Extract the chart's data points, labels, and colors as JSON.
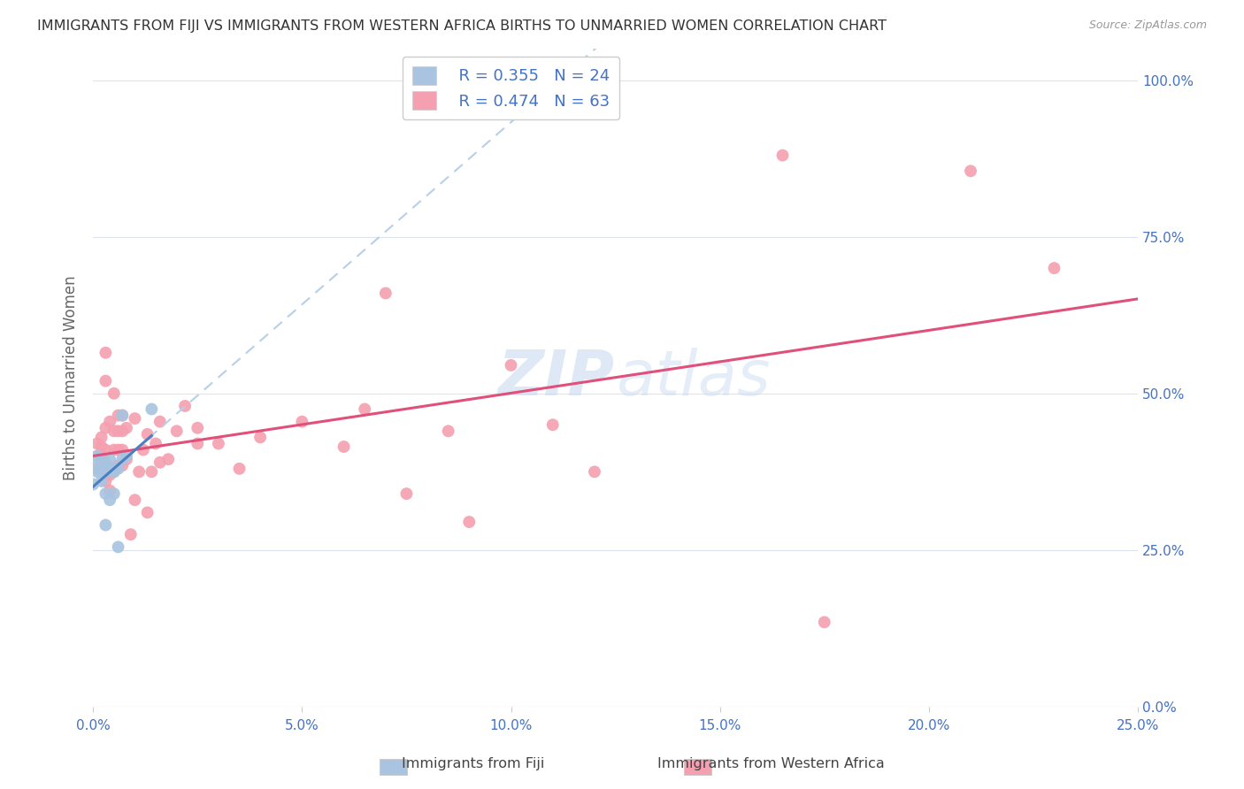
{
  "title": "IMMIGRANTS FROM FIJI VS IMMIGRANTS FROM WESTERN AFRICA BIRTHS TO UNMARRIED WOMEN CORRELATION CHART",
  "source": "Source: ZipAtlas.com",
  "ylabel": "Births to Unmarried Women",
  "xlabel_fiji": "Immigrants from Fiji",
  "xlabel_africa": "Immigrants from Western Africa",
  "fiji_R": 0.355,
  "fiji_N": 24,
  "africa_R": 0.474,
  "africa_N": 63,
  "fiji_color": "#a8c4e0",
  "africa_color": "#f4a0b0",
  "fiji_line_color": "#4a7fc0",
  "africa_line_color": "#e0507a",
  "fiji_trend_color": "#b8cfe8",
  "background_color": "#ffffff",
  "watermark_zip": "ZIP",
  "watermark_atlas": "atlas",
  "xmin": 0.0,
  "xmax": 0.25,
  "ymin": 0.0,
  "ymax": 1.05,
  "x_ticks": [
    0.0,
    0.05,
    0.1,
    0.15,
    0.2,
    0.25
  ],
  "x_tick_labels": [
    "0.0%",
    "5.0%",
    "10.0%",
    "15.0%",
    "20.0%",
    "25.0%"
  ],
  "y_ticks": [
    0.0,
    0.25,
    0.5,
    0.75,
    1.0
  ],
  "y_tick_labels": [
    "0.0%",
    "25.0%",
    "50.0%",
    "75.0%",
    "100.0%"
  ],
  "fiji_x": [
    0.0,
    0.001,
    0.001,
    0.001,
    0.002,
    0.002,
    0.002,
    0.002,
    0.003,
    0.003,
    0.003,
    0.003,
    0.003,
    0.004,
    0.004,
    0.005,
    0.005,
    0.005,
    0.006,
    0.006,
    0.007,
    0.007,
    0.008,
    0.014
  ],
  "fiji_y": [
    0.355,
    0.375,
    0.385,
    0.4,
    0.36,
    0.375,
    0.385,
    0.395,
    0.29,
    0.34,
    0.375,
    0.38,
    0.39,
    0.33,
    0.395,
    0.34,
    0.375,
    0.38,
    0.255,
    0.38,
    0.395,
    0.465,
    0.4,
    0.475
  ],
  "africa_x": [
    0.001,
    0.001,
    0.001,
    0.002,
    0.002,
    0.002,
    0.002,
    0.003,
    0.003,
    0.003,
    0.003,
    0.003,
    0.003,
    0.004,
    0.004,
    0.004,
    0.005,
    0.005,
    0.005,
    0.005,
    0.006,
    0.006,
    0.006,
    0.006,
    0.007,
    0.007,
    0.007,
    0.007,
    0.008,
    0.008,
    0.009,
    0.01,
    0.01,
    0.011,
    0.012,
    0.013,
    0.013,
    0.014,
    0.015,
    0.016,
    0.016,
    0.018,
    0.02,
    0.022,
    0.025,
    0.025,
    0.03,
    0.035,
    0.04,
    0.05,
    0.06,
    0.065,
    0.07,
    0.075,
    0.085,
    0.09,
    0.1,
    0.11,
    0.12,
    0.165,
    0.175,
    0.21,
    0.23
  ],
  "africa_y": [
    0.38,
    0.4,
    0.42,
    0.38,
    0.4,
    0.415,
    0.43,
    0.36,
    0.385,
    0.41,
    0.445,
    0.52,
    0.565,
    0.345,
    0.37,
    0.455,
    0.375,
    0.41,
    0.44,
    0.5,
    0.385,
    0.41,
    0.44,
    0.465,
    0.385,
    0.41,
    0.44,
    0.465,
    0.395,
    0.445,
    0.275,
    0.33,
    0.46,
    0.375,
    0.41,
    0.31,
    0.435,
    0.375,
    0.42,
    0.39,
    0.455,
    0.395,
    0.44,
    0.48,
    0.42,
    0.445,
    0.42,
    0.38,
    0.43,
    0.455,
    0.415,
    0.475,
    0.66,
    0.34,
    0.44,
    0.295,
    0.545,
    0.45,
    0.375,
    0.88,
    0.135,
    0.855,
    0.7
  ]
}
